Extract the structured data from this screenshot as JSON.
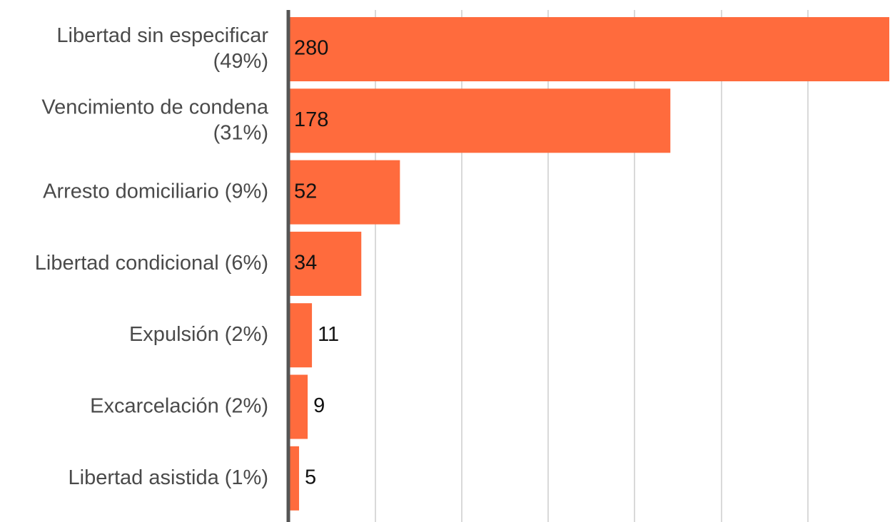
{
  "chart_data": {
    "type": "bar",
    "orientation": "horizontal",
    "categories": [
      "Libertad sin especificar (49%)",
      "Vencimiento de condena (31%)",
      "Arresto domiciliario (9%)",
      "Libertad condicional (6%)",
      "Expulsión (2%)",
      "Excarcelación (2%)",
      "Libertad asistida (1%)"
    ],
    "category_lines": [
      [
        "Libertad sin especificar",
        "(49%)"
      ],
      [
        "Vencimiento de condena",
        "(31%)"
      ],
      [
        "Arresto domiciliario (9%)"
      ],
      [
        "Libertad condicional (6%)"
      ],
      [
        "Expulsión (2%)"
      ],
      [
        "Excarcelación (2%)"
      ],
      [
        "Libertad asistida (1%)"
      ]
    ],
    "values": [
      280,
      178,
      52,
      34,
      11,
      9,
      5
    ],
    "xlim": [
      0,
      280
    ],
    "grid": true,
    "legend": "none",
    "title": "",
    "xlabel": "",
    "ylabel": "",
    "colors": {
      "bar": "#ff6b3d",
      "axis": "#555555",
      "grid": "#d9d9d9"
    }
  }
}
